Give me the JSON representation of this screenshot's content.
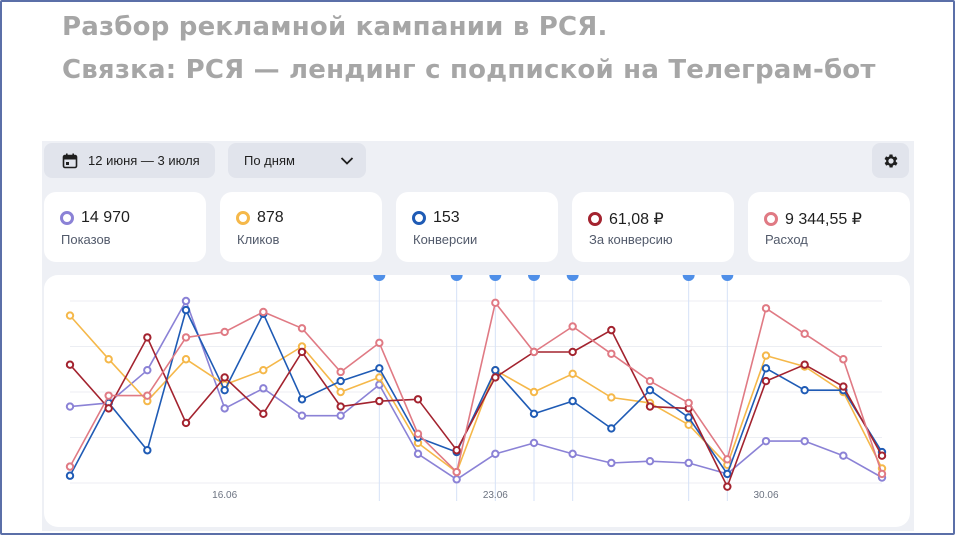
{
  "title": {
    "line1": "Разбор рекламной кампании в РСЯ.",
    "line2": "Связка: РСЯ — лендинг с подпиской на Телеграм-бот"
  },
  "toolbar": {
    "date_range": "12 июня — 3 июля",
    "date_icon": "calendar-icon",
    "period": "По дням",
    "period_icon": "chevron-down-icon",
    "settings_icon": "gear-icon"
  },
  "metrics": [
    {
      "value": "14 970",
      "label": "Показов",
      "color": "#8b82d6"
    },
    {
      "value": "878",
      "label": "Кликов",
      "color": "#f5b84a"
    },
    {
      "value": "153",
      "label": "Конверсии",
      "color": "#1f5bb5"
    },
    {
      "value": "61,08 ₽",
      "label": "За конверсию",
      "color": "#a3232f"
    },
    {
      "value": "9 344,55 ₽",
      "label": "Расход",
      "color": "#e07a84"
    }
  ],
  "chart_data": {
    "type": "line",
    "x": [
      "12.06",
      "13.06",
      "14.06",
      "15.06",
      "16.06",
      "17.06",
      "18.06",
      "19.06",
      "20.06",
      "21.06",
      "22.06",
      "23.06",
      "24.06",
      "25.06",
      "26.06",
      "27.06",
      "28.06",
      "29.06",
      "30.06",
      "01.07",
      "02.07",
      "03.07"
    ],
    "x_ticks": [
      "16.06",
      "23.06",
      "30.06"
    ],
    "event_markers": [
      "20.06",
      "22.06",
      "23.06",
      "24.06",
      "25.06",
      "28.06",
      "29.06"
    ],
    "ylim": [
      0,
      100
    ],
    "grid": true,
    "series": [
      {
        "key": "shows",
        "color": "#8b82d6",
        "values": [
          42,
          44,
          62,
          100,
          41,
          52,
          37,
          37,
          54,
          16,
          2,
          16,
          22,
          16,
          11,
          12,
          11,
          5,
          23,
          23,
          15,
          3
        ]
      },
      {
        "key": "clicks",
        "color": "#f5b84a",
        "values": [
          92,
          68,
          45,
          68,
          54,
          62,
          75,
          50,
          58,
          22,
          6,
          62,
          50,
          60,
          47,
          44,
          32,
          10,
          70,
          64,
          50,
          8
        ]
      },
      {
        "key": "conversions",
        "color": "#1f5bb5",
        "values": [
          4,
          44,
          18,
          95,
          51,
          93,
          46,
          56,
          63,
          25,
          17,
          62,
          38,
          45,
          30,
          51,
          36,
          5,
          63,
          51,
          51,
          17
        ]
      },
      {
        "key": "per_conversion",
        "color": "#a3232f",
        "values": [
          65,
          41,
          80,
          33,
          58,
          38,
          72,
          42,
          45,
          46,
          18,
          58,
          72,
          72,
          84,
          42,
          41,
          -2,
          56,
          65,
          53,
          15
        ]
      },
      {
        "key": "spend",
        "color": "#e07a84",
        "values": [
          9,
          48,
          48,
          80,
          83,
          94,
          85,
          61,
          77,
          27,
          6,
          99,
          72,
          86,
          71,
          56,
          44,
          13,
          96,
          82,
          68,
          5
        ]
      }
    ]
  }
}
